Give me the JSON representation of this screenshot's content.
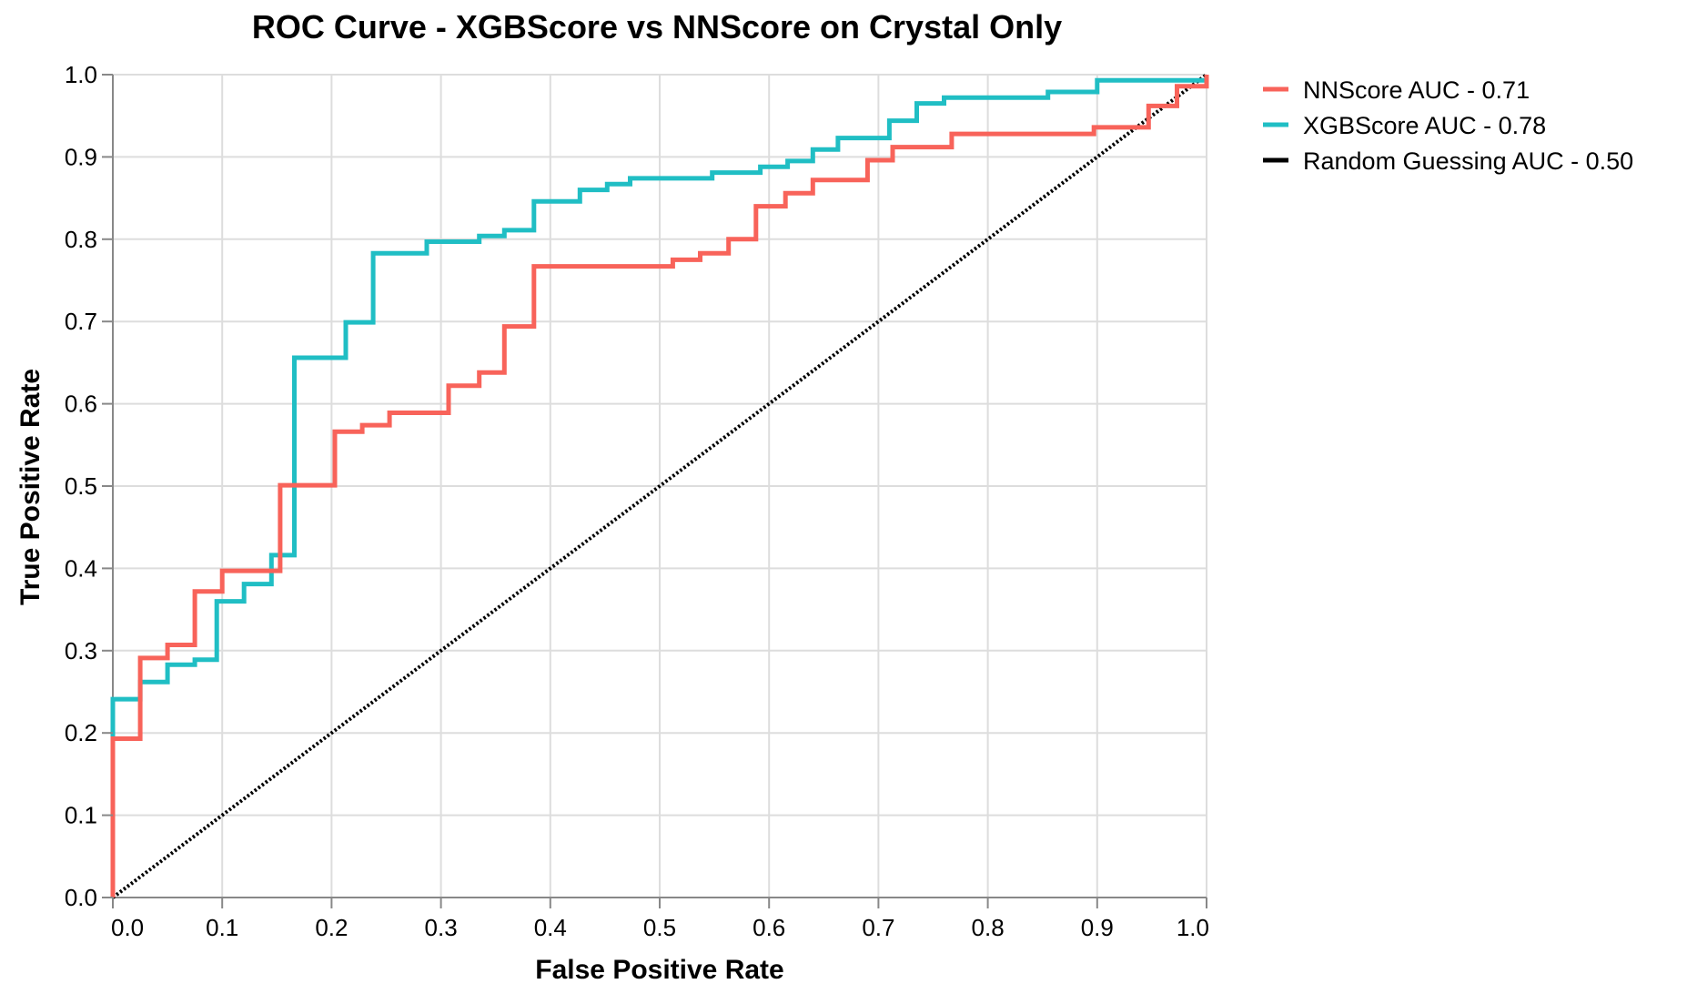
{
  "chart_data": {
    "type": "line",
    "title": "ROC Curve - XGBScore vs NNScore on Crystal Only",
    "xlabel": "False Positive Rate",
    "ylabel": "True Positive Rate",
    "xlim": [
      0,
      1
    ],
    "ylim": [
      0,
      1
    ],
    "xticks": [
      "0.0",
      "0.1",
      "0.2",
      "0.3",
      "0.4",
      "0.5",
      "0.6",
      "0.7",
      "0.8",
      "0.9",
      "1.0"
    ],
    "yticks": [
      "0.0",
      "0.1",
      "0.2",
      "0.3",
      "0.4",
      "0.5",
      "0.6",
      "0.7",
      "0.8",
      "0.9",
      "1.0"
    ],
    "grid": true,
    "legend_position": "top-right, outside plot",
    "series": [
      {
        "name": "NNScore AUC - 0.71",
        "color": "#f8635a",
        "style": "solid",
        "points": [
          [
            0.0,
            0.0
          ],
          [
            0.0,
            0.193
          ],
          [
            0.025,
            0.193
          ],
          [
            0.025,
            0.291
          ],
          [
            0.05,
            0.291
          ],
          [
            0.05,
            0.307
          ],
          [
            0.075,
            0.307
          ],
          [
            0.075,
            0.372
          ],
          [
            0.1,
            0.372
          ],
          [
            0.1,
            0.397
          ],
          [
            0.153,
            0.397
          ],
          [
            0.153,
            0.501
          ],
          [
            0.203,
            0.501
          ],
          [
            0.203,
            0.566
          ],
          [
            0.228,
            0.566
          ],
          [
            0.228,
            0.574
          ],
          [
            0.253,
            0.574
          ],
          [
            0.253,
            0.589
          ],
          [
            0.307,
            0.589
          ],
          [
            0.307,
            0.622
          ],
          [
            0.335,
            0.622
          ],
          [
            0.335,
            0.638
          ],
          [
            0.358,
            0.638
          ],
          [
            0.358,
            0.694
          ],
          [
            0.385,
            0.694
          ],
          [
            0.385,
            0.767
          ],
          [
            0.512,
            0.767
          ],
          [
            0.512,
            0.775
          ],
          [
            0.537,
            0.775
          ],
          [
            0.537,
            0.783
          ],
          [
            0.563,
            0.783
          ],
          [
            0.563,
            0.8
          ],
          [
            0.588,
            0.8
          ],
          [
            0.588,
            0.84
          ],
          [
            0.615,
            0.84
          ],
          [
            0.615,
            0.856
          ],
          [
            0.64,
            0.856
          ],
          [
            0.64,
            0.872
          ],
          [
            0.69,
            0.872
          ],
          [
            0.69,
            0.896
          ],
          [
            0.713,
            0.896
          ],
          [
            0.713,
            0.912
          ],
          [
            0.767,
            0.912
          ],
          [
            0.767,
            0.928
          ],
          [
            0.897,
            0.928
          ],
          [
            0.897,
            0.936
          ],
          [
            0.947,
            0.936
          ],
          [
            0.947,
            0.962
          ],
          [
            0.973,
            0.962
          ],
          [
            0.973,
            0.986
          ],
          [
            1.0,
            0.986
          ],
          [
            1.0,
            1.0
          ]
        ]
      },
      {
        "name": "XGBScore AUC - 0.78",
        "color": "#20bec4",
        "style": "solid",
        "points": [
          [
            0.0,
            0.0
          ],
          [
            0.0,
            0.241
          ],
          [
            0.025,
            0.241
          ],
          [
            0.025,
            0.262
          ],
          [
            0.05,
            0.262
          ],
          [
            0.05,
            0.283
          ],
          [
            0.075,
            0.283
          ],
          [
            0.075,
            0.289
          ],
          [
            0.095,
            0.289
          ],
          [
            0.095,
            0.36
          ],
          [
            0.12,
            0.36
          ],
          [
            0.12,
            0.381
          ],
          [
            0.145,
            0.381
          ],
          [
            0.145,
            0.416
          ],
          [
            0.166,
            0.416
          ],
          [
            0.166,
            0.656
          ],
          [
            0.213,
            0.656
          ],
          [
            0.213,
            0.699
          ],
          [
            0.238,
            0.699
          ],
          [
            0.238,
            0.783
          ],
          [
            0.287,
            0.783
          ],
          [
            0.287,
            0.797
          ],
          [
            0.335,
            0.797
          ],
          [
            0.335,
            0.804
          ],
          [
            0.358,
            0.804
          ],
          [
            0.358,
            0.811
          ],
          [
            0.385,
            0.811
          ],
          [
            0.385,
            0.846
          ],
          [
            0.427,
            0.846
          ],
          [
            0.427,
            0.86
          ],
          [
            0.452,
            0.86
          ],
          [
            0.452,
            0.867
          ],
          [
            0.473,
            0.867
          ],
          [
            0.473,
            0.874
          ],
          [
            0.548,
            0.874
          ],
          [
            0.548,
            0.881
          ],
          [
            0.592,
            0.881
          ],
          [
            0.592,
            0.888
          ],
          [
            0.617,
            0.888
          ],
          [
            0.617,
            0.895
          ],
          [
            0.64,
            0.895
          ],
          [
            0.64,
            0.909
          ],
          [
            0.663,
            0.909
          ],
          [
            0.663,
            0.923
          ],
          [
            0.71,
            0.923
          ],
          [
            0.71,
            0.944
          ],
          [
            0.735,
            0.944
          ],
          [
            0.735,
            0.965
          ],
          [
            0.76,
            0.965
          ],
          [
            0.76,
            0.972
          ],
          [
            0.855,
            0.972
          ],
          [
            0.855,
            0.979
          ],
          [
            0.9,
            0.979
          ],
          [
            0.9,
            0.993
          ],
          [
            1.0,
            0.993
          ],
          [
            1.0,
            1.0
          ]
        ]
      },
      {
        "name": "Random Guessing AUC - 0.50",
        "color": "#000000",
        "style": "dotted",
        "points": [
          [
            0.0,
            0.0
          ],
          [
            1.0,
            1.0
          ]
        ]
      }
    ]
  }
}
